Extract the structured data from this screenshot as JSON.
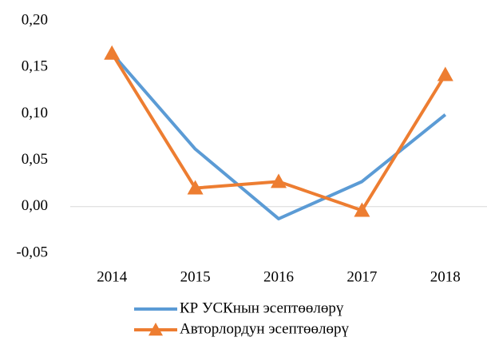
{
  "chart_data": {
    "type": "line",
    "categories": [
      "2014",
      "2015",
      "2016",
      "2017",
      "2018"
    ],
    "series": [
      {
        "name": "КР УСКнын эсептөөлөрү",
        "color": "#5b9bd5",
        "values": [
          0.165,
          0.062,
          -0.013,
          0.027,
          0.099
        ]
      },
      {
        "name": "Авторлордун эсептөөлөрү",
        "color": "#ed7d31",
        "marker": "triangle",
        "values": [
          0.165,
          0.02,
          0.027,
          -0.004,
          0.142
        ]
      }
    ],
    "ylim": [
      -0.05,
      0.2
    ],
    "yticks": [
      {
        "value": -0.05,
        "label": "-0,05"
      },
      {
        "value": 0,
        "label": "0,00"
      },
      {
        "value": 0.05,
        "label": "0,05"
      },
      {
        "value": 0.1,
        "label": "0,10"
      },
      {
        "value": 0.15,
        "label": "0,15"
      },
      {
        "value": 0.2,
        "label": "0,20"
      }
    ],
    "grid": false,
    "legend": "bottom"
  }
}
